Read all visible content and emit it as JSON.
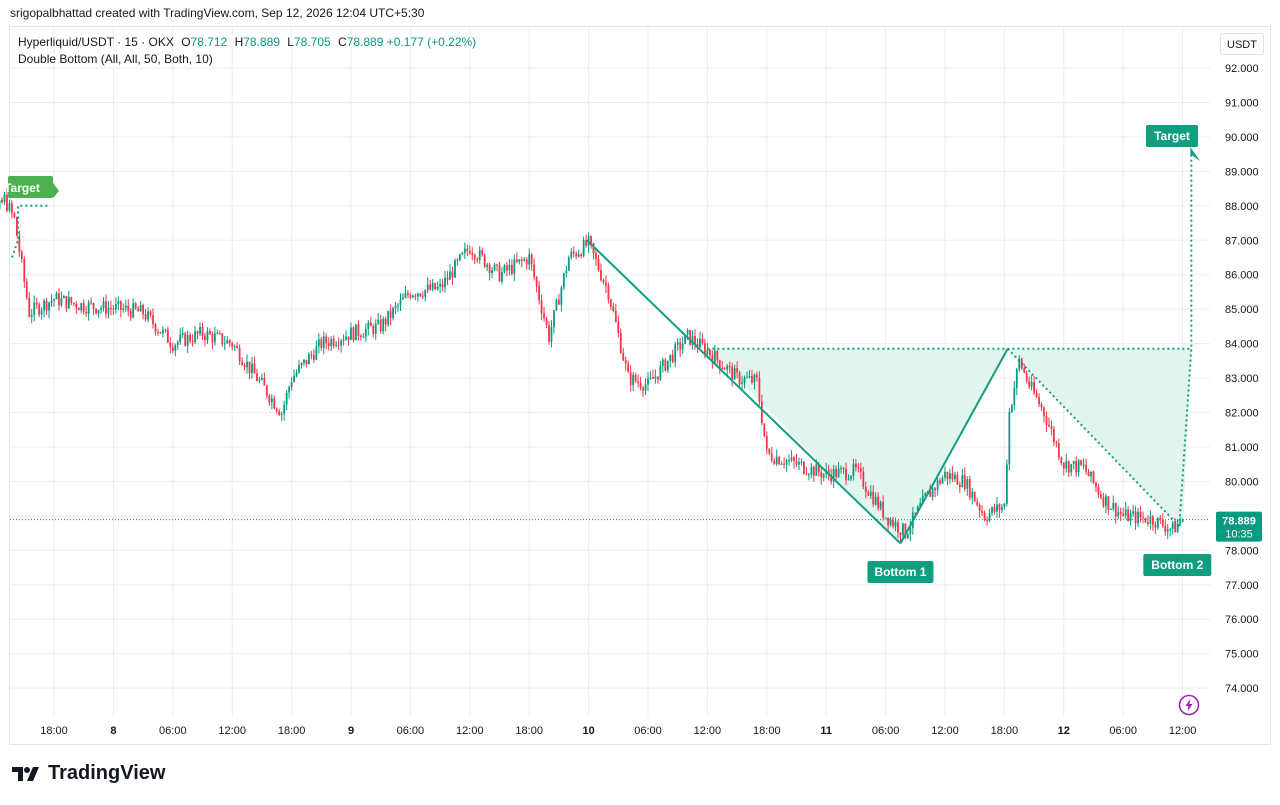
{
  "credit": "srigopalbhattad created with TradingView.com, Sep 12, 2026 12:04 UTC+5:30",
  "legend": {
    "symbol": "Hyperliquid/USDT · 15 · OKX",
    "open_label": "O",
    "open": "78.712",
    "high_label": "H",
    "high": "78.889",
    "low_label": "L",
    "low": "78.705",
    "close_label": "C",
    "close": "78.889",
    "change": "+0.177",
    "change_pct": "(+0.22%)",
    "indicator": "Double Bottom (All, All, 50, Both, 10)"
  },
  "price_axis": {
    "unit": "USDT",
    "last_price": "78.889",
    "countdown": "10:35"
  },
  "logo": {
    "text": "TradingView",
    "icon": "tradingview-logo-icon"
  },
  "icons": {
    "bolt": "lightning-bolt-icon"
  },
  "colors": {
    "up": "#089981",
    "down": "#f23645",
    "pattern": "#0f9e7f",
    "fill": "#dff3ec",
    "label_bg": "#0f9e7f",
    "old_target": "#4caf50",
    "grid": "#ecedf1"
  },
  "chart_data": {
    "type": "candlestick",
    "instrument": "Hyperliquid/USDT",
    "interval": "15",
    "exchange": "OKX",
    "y_axis": {
      "range": [
        73.3,
        93.0
      ],
      "ticks": [
        "74.000",
        "75.000",
        "76.000",
        "77.000",
        "78.000",
        "79.000",
        "80.000",
        "81.000",
        "82.000",
        "83.000",
        "84.000",
        "85.000",
        "86.000",
        "87.000",
        "88.000",
        "89.000",
        "90.000",
        "91.000",
        "92.000"
      ]
    },
    "x_axis": {
      "ticks": [
        "18:00",
        "8",
        "06:00",
        "12:00",
        "18:00",
        "9",
        "06:00",
        "12:00",
        "18:00",
        "10",
        "06:00",
        "12:00",
        "18:00",
        "11",
        "06:00",
        "12:00",
        "18:00",
        "12",
        "06:00",
        "12:00"
      ]
    },
    "price_path": [
      {
        "t": "7 09:30",
        "p": 86.5
      },
      {
        "t": "7 13:00",
        "p": 88.2
      },
      {
        "t": "7 14:00",
        "p": 87.6
      },
      {
        "t": "7 15:30",
        "p": 84.9
      },
      {
        "t": "7 18:00",
        "p": 85.3
      },
      {
        "t": "7 21:00",
        "p": 85.1
      },
      {
        "t": "8 01:00",
        "p": 85.0
      },
      {
        "t": "8 03:00",
        "p": 84.9
      },
      {
        "t": "8 06:00",
        "p": 84.0
      },
      {
        "t": "8 09:00",
        "p": 84.3
      },
      {
        "t": "8 12:00",
        "p": 84.0
      },
      {
        "t": "8 15:00",
        "p": 82.8
      },
      {
        "t": "8 17:00",
        "p": 82.0
      },
      {
        "t": "8 18:00",
        "p": 83.0
      },
      {
        "t": "8 21:00",
        "p": 84.0
      },
      {
        "t": "9 00:00",
        "p": 84.3
      },
      {
        "t": "9 03:00",
        "p": 84.5
      },
      {
        "t": "9 06:00",
        "p": 85.5
      },
      {
        "t": "9 09:00",
        "p": 85.6
      },
      {
        "t": "9 12:00",
        "p": 86.8
      },
      {
        "t": "9 15:00",
        "p": 86.0
      },
      {
        "t": "9 18:00",
        "p": 86.5
      },
      {
        "t": "9 20:00",
        "p": 84.2
      },
      {
        "t": "9 22:00",
        "p": 86.5
      },
      {
        "t": "10 00:00",
        "p": 86.9
      },
      {
        "t": "10 02:00",
        "p": 85.5
      },
      {
        "t": "10 04:00",
        "p": 83.0
      },
      {
        "t": "10 06:00",
        "p": 82.8
      },
      {
        "t": "10 08:00",
        "p": 83.5
      },
      {
        "t": "10 10:00",
        "p": 84.2
      },
      {
        "t": "10 12:00",
        "p": 83.8
      },
      {
        "t": "10 15:00",
        "p": 83.0
      },
      {
        "t": "10 17:00",
        "p": 82.9
      },
      {
        "t": "10 18:00",
        "p": 80.8
      },
      {
        "t": "10 21:00",
        "p": 80.5
      },
      {
        "t": "11 00:00",
        "p": 80.2
      },
      {
        "t": "11 03:00",
        "p": 80.3
      },
      {
        "t": "11 06:00",
        "p": 79.0
      },
      {
        "t": "11 08:00",
        "p": 78.5
      },
      {
        "t": "11 10:00",
        "p": 79.5
      },
      {
        "t": "11 12:00",
        "p": 80.2
      },
      {
        "t": "11 14:00",
        "p": 80.0
      },
      {
        "t": "11 16:00",
        "p": 79.0
      },
      {
        "t": "11 18:00",
        "p": 79.3
      },
      {
        "t": "11 18:30",
        "p": 82.0
      },
      {
        "t": "11 19:30",
        "p": 83.5
      },
      {
        "t": "11 20:30",
        "p": 82.8
      },
      {
        "t": "11 22:00",
        "p": 82.0
      },
      {
        "t": "12 00:00",
        "p": 80.5
      },
      {
        "t": "12 02:00",
        "p": 80.4
      },
      {
        "t": "12 04:00",
        "p": 79.5
      },
      {
        "t": "12 06:00",
        "p": 79.0
      },
      {
        "t": "12 09:00",
        "p": 78.9
      },
      {
        "t": "12 11:00",
        "p": 78.6
      },
      {
        "t": "12 12:00",
        "p": 78.9
      }
    ],
    "pattern": {
      "name": "Double Bottom",
      "points": [
        {
          "t": "9 23:50",
          "p": 87.0
        },
        {
          "t": "11 07:30",
          "p": 78.2,
          "label": "Bottom 1"
        },
        {
          "t": "11 18:20",
          "p": 83.85
        },
        {
          "t": "12 11:40",
          "p": 78.7,
          "label": "Bottom 2"
        }
      ],
      "neckline": 83.85,
      "target": 89.5,
      "target_label": "Target"
    },
    "previous_target": {
      "label": "Target",
      "level": 88.0
    }
  }
}
